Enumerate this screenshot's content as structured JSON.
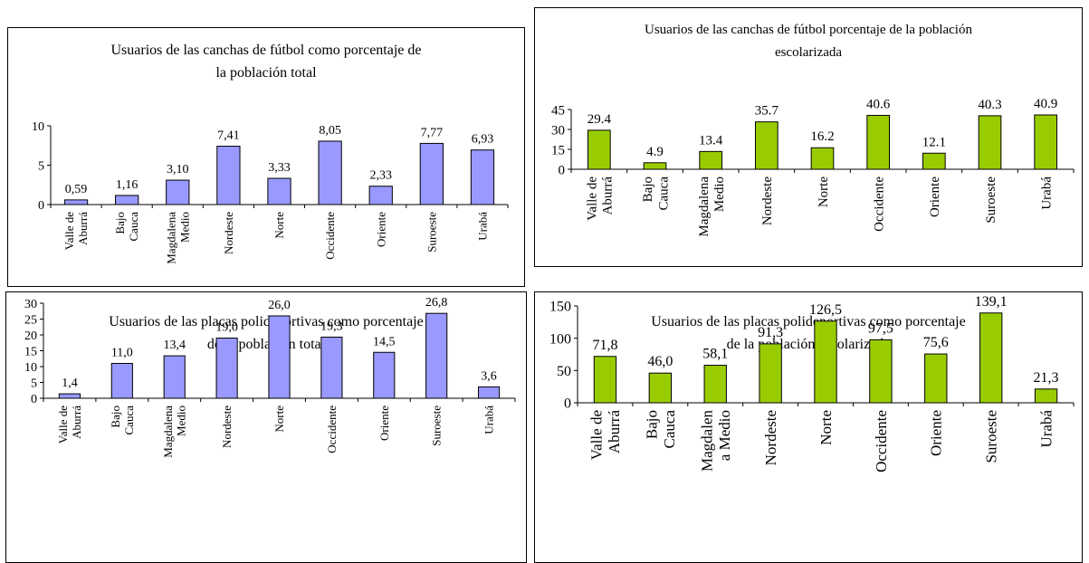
{
  "chart_data": [
    {
      "type": "bar",
      "title": "Usuarios de las canchas de fútbol como porcentaje de la población total",
      "title_lines": [
        "Usuarios de las canchas de fútbol como porcentaje de",
        "la población total"
      ],
      "categories": [
        [
          "Valle de",
          "Aburrá"
        ],
        [
          "Bajo",
          "Cauca"
        ],
        [
          "Magdalena",
          "Medio"
        ],
        [
          "Nordeste"
        ],
        [
          "Norte"
        ],
        [
          "Occidente"
        ],
        [
          "Oriente"
        ],
        [
          "Suroeste"
        ],
        [
          "Urabá"
        ]
      ],
      "values": [
        0.59,
        1.16,
        3.1,
        7.41,
        3.33,
        8.05,
        2.33,
        7.77,
        6.93
      ],
      "value_labels": [
        "0,59",
        "1,16",
        "3,10",
        "7,41",
        "3,33",
        "8,05",
        "2,33",
        "7,77",
        "6,93"
      ],
      "yticks": [
        0,
        5,
        10
      ],
      "ylim": [
        0,
        10
      ],
      "color": "#9999ff"
    },
    {
      "type": "bar",
      "title": "Usuarios de las canchas de fútbol porcentaje de la población escolarizada",
      "title_lines": [
        "Usuarios de las canchas de fútbol porcentaje de la población",
        "escolarizada"
      ],
      "categories": [
        [
          "Valle de",
          "Aburrá"
        ],
        [
          "Bajo",
          "Cauca"
        ],
        [
          "Magdalena",
          "Medio"
        ],
        [
          "Nordeste"
        ],
        [
          "Norte"
        ],
        [
          "Occidente"
        ],
        [
          "Oriente"
        ],
        [
          "Suroeste"
        ],
        [
          "Urabá"
        ]
      ],
      "values": [
        29.4,
        4.9,
        13.4,
        35.7,
        16.2,
        40.6,
        12.1,
        40.3,
        40.9
      ],
      "value_labels": [
        "29.4",
        "4.9",
        "13.4",
        "35.7",
        "16.2",
        "40.6",
        "12.1",
        "40.3",
        "40.9"
      ],
      "yticks": [
        0,
        15,
        30,
        45
      ],
      "ylim": [
        0,
        45
      ],
      "color": "#99cc00"
    },
    {
      "type": "bar",
      "title": "Usuarios de las placas polideportivas como porcentaje de la población total",
      "title_lines": [
        "Usuarios de las placas polideportivas como porcentaje",
        "de la población total"
      ],
      "categories": [
        [
          "Valle de",
          "Aburrá"
        ],
        [
          "Bajo",
          "Cauca"
        ],
        [
          "Magdalena",
          "Medio"
        ],
        [
          "Nordeste"
        ],
        [
          "Norte"
        ],
        [
          "Occidente"
        ],
        [
          "Oriente"
        ],
        [
          "Suroeste"
        ],
        [
          "Urabá"
        ]
      ],
      "values": [
        1.4,
        11.0,
        13.4,
        19.0,
        26.0,
        19.3,
        14.5,
        26.8,
        3.6
      ],
      "value_labels": [
        "1,4",
        "11,0",
        "13,4",
        "19,0",
        "26,0",
        "19,3",
        "14,5",
        "26,8",
        "3,6"
      ],
      "yticks": [
        0,
        5,
        10,
        15,
        20,
        25,
        30
      ],
      "ylim": [
        0,
        30
      ],
      "color": "#9999ff"
    },
    {
      "type": "bar",
      "title": "Usuarios de las placas polideportivas como porcentaje de la población escolarizada",
      "title_lines": [
        "Usuarios de las placas polideportivas como porcentaje",
        "de la población escolarizada"
      ],
      "categories": [
        [
          "Valle de",
          "Aburrá"
        ],
        [
          "Bajo",
          "Cauca"
        ],
        [
          "Magdalen",
          "a Medio"
        ],
        [
          "Nordeste"
        ],
        [
          "Norte"
        ],
        [
          "Occidente"
        ],
        [
          "Oriente"
        ],
        [
          "Suroeste"
        ],
        [
          "Urabá"
        ]
      ],
      "values": [
        71.8,
        46.0,
        58.1,
        91.3,
        126.5,
        97.5,
        75.6,
        139.1,
        21.3
      ],
      "value_labels": [
        "71,8",
        "46,0",
        "58,1",
        "91,3",
        "126,5",
        "97,5",
        "75,6",
        "139,1",
        "21,3"
      ],
      "yticks": [
        0,
        50,
        100,
        150
      ],
      "ylim": [
        0,
        150
      ],
      "color": "#99cc00"
    }
  ]
}
